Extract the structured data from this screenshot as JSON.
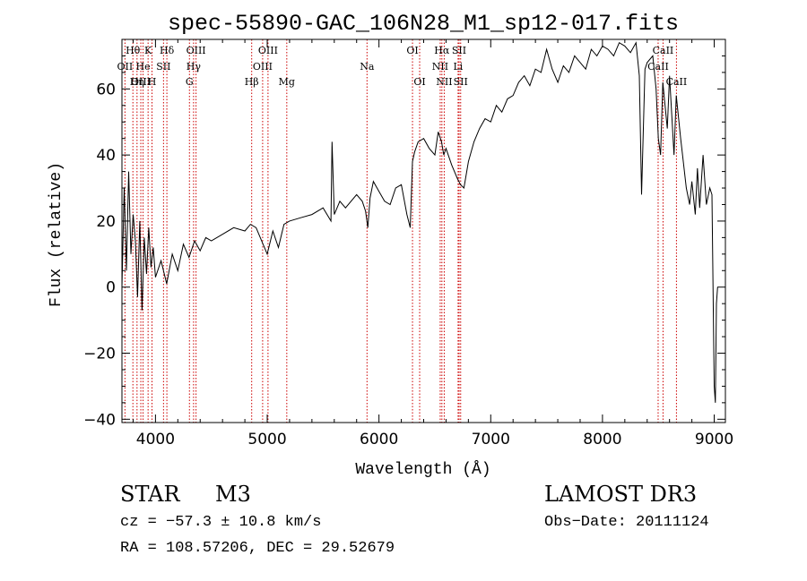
{
  "chart_data": {
    "type": "line",
    "title": "spec-55890-GAC_106N28_M1_sp12-017.fits",
    "xlabel": "Wavelength (Å)",
    "ylabel": "Flux (relative)",
    "xlim": [
      3700,
      9100
    ],
    "ylim": [
      -41,
      75
    ],
    "x_ticks": [
      4000,
      5000,
      6000,
      7000,
      8000,
      9000
    ],
    "y_ticks": [
      -40,
      -20,
      0,
      20,
      40,
      60
    ],
    "grid": false,
    "colors": {
      "spectrum": "#000000",
      "lines": "#cc0000"
    },
    "spectral_lines": [
      {
        "label": "Hθ",
        "wavelength": 3798,
        "row": 0
      },
      {
        "label": "OII",
        "wavelength": 3727,
        "row": 1
      },
      {
        "label": "OIII",
        "wavelength": 3869,
        "row": 2
      },
      {
        "label": "Hη",
        "wavelength": 3835,
        "row": 2
      },
      {
        "label": "He",
        "wavelength": 3889,
        "row": 1
      },
      {
        "label": "K",
        "wavelength": 3934,
        "row": 0
      },
      {
        "label": "H",
        "wavelength": 3969,
        "row": 2
      },
      {
        "label": "SII",
        "wavelength": 4072,
        "row": 1
      },
      {
        "label": "Hδ",
        "wavelength": 4102,
        "row": 0
      },
      {
        "label": "OIII",
        "wavelength": 4363,
        "row": 0
      },
      {
        "label": "Hγ",
        "wavelength": 4341,
        "row": 1
      },
      {
        "label": "G",
        "wavelength": 4304,
        "row": 2
      },
      {
        "label": "OIII",
        "wavelength": 5007,
        "row": 0
      },
      {
        "label": "OIII",
        "wavelength": 4959,
        "row": 1
      },
      {
        "label": "Hβ",
        "wavelength": 4861,
        "row": 2
      },
      {
        "label": "Mg",
        "wavelength": 5175,
        "row": 2
      },
      {
        "label": "Na",
        "wavelength": 5893,
        "row": 1
      },
      {
        "label": "OI",
        "wavelength": 6300,
        "row": 0
      },
      {
        "label": "OI",
        "wavelength": 6364,
        "row": 2
      },
      {
        "label": "Hα",
        "wavelength": 6563,
        "row": 0
      },
      {
        "label": "NII",
        "wavelength": 6548,
        "row": 1
      },
      {
        "label": "NII",
        "wavelength": 6584,
        "row": 2
      },
      {
        "label": "SII",
        "wavelength": 6717,
        "row": 0
      },
      {
        "label": "Li",
        "wavelength": 6708,
        "row": 1
      },
      {
        "label": "SII",
        "wavelength": 6731,
        "row": 2
      },
      {
        "label": "CaII",
        "wavelength": 8542,
        "row": 0
      },
      {
        "label": "CaII",
        "wavelength": 8498,
        "row": 1
      },
      {
        "label": "CaII",
        "wavelength": 8662,
        "row": 2
      }
    ],
    "spectrum": {
      "x": [
        3700,
        3720,
        3740,
        3760,
        3780,
        3800,
        3820,
        3840,
        3860,
        3880,
        3900,
        3920,
        3940,
        3960,
        3980,
        4000,
        4050,
        4100,
        4150,
        4200,
        4250,
        4300,
        4350,
        4400,
        4450,
        4500,
        4600,
        4700,
        4800,
        4850,
        4900,
        4950,
        5000,
        5050,
        5100,
        5150,
        5200,
        5300,
        5400,
        5500,
        5570,
        5580,
        5600,
        5650,
        5700,
        5800,
        5850,
        5880,
        5900,
        5920,
        5950,
        6000,
        6050,
        6100,
        6150,
        6200,
        6250,
        6280,
        6300,
        6320,
        6350,
        6400,
        6450,
        6500,
        6530,
        6560,
        6580,
        6600,
        6650,
        6700,
        6730,
        6760,
        6800,
        6850,
        6900,
        6950,
        7000,
        7050,
        7100,
        7150,
        7200,
        7250,
        7300,
        7350,
        7400,
        7450,
        7500,
        7550,
        7600,
        7650,
        7700,
        7750,
        7800,
        7850,
        7900,
        7950,
        8000,
        8050,
        8100,
        8150,
        8200,
        8250,
        8300,
        8330,
        8350,
        8380,
        8400,
        8450,
        8480,
        8500,
        8520,
        8540,
        8560,
        8580,
        8600,
        8640,
        8660,
        8700,
        8750,
        8780,
        8800,
        8830,
        8850,
        8870,
        8900,
        8930,
        8960,
        8980,
        8990,
        9000,
        9010,
        9020,
        9030
      ],
      "y": [
        0,
        30,
        5,
        35,
        10,
        22,
        14,
        -3,
        20,
        -7,
        15,
        4,
        18,
        6,
        12,
        3,
        8,
        1,
        10,
        5,
        13,
        9,
        14,
        11,
        15,
        14,
        16,
        18,
        17,
        19,
        18,
        14,
        10,
        17,
        12,
        19,
        20,
        21,
        22,
        24,
        20,
        44,
        22,
        26,
        24,
        28,
        26,
        23,
        18,
        27,
        32,
        29,
        26,
        25,
        30,
        31,
        22,
        18,
        38,
        41,
        44,
        45,
        42,
        40,
        47,
        44,
        40,
        42,
        37,
        33,
        31,
        30,
        38,
        44,
        48,
        51,
        50,
        55,
        53,
        57,
        58,
        62,
        64,
        61,
        66,
        65,
        72,
        66,
        62,
        67,
        65,
        70,
        68,
        66,
        72,
        70,
        73,
        72,
        70,
        74,
        73,
        71,
        74,
        64,
        28,
        66,
        68,
        70,
        60,
        45,
        40,
        62,
        55,
        48,
        64,
        40,
        58,
        45,
        30,
        25,
        32,
        22,
        36,
        24,
        40,
        25,
        30,
        28,
        -2,
        -30,
        -35,
        -5,
        0
      ]
    }
  },
  "info": {
    "object_class": "STAR",
    "subclass": "M3",
    "survey": "LAMOST DR3",
    "redshift": "cz = −57.3 ± 10.8 km/s",
    "obs_date": "Obs−Date: 20111124",
    "coords": "RA = 108.57206, DEC =  29.52679"
  }
}
